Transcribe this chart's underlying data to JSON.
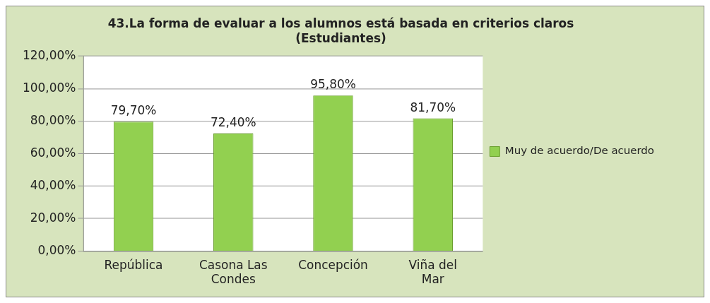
{
  "chart_data": {
    "type": "bar",
    "title": "43.La forma de evaluar a los alumnos está basada en criterios claros (Estudiantes)",
    "categories": [
      "República",
      "Casona Las Condes",
      "Concepción",
      "Viña del Mar"
    ],
    "series": [
      {
        "name": "Muy de acuerdo/De acuerdo",
        "color": "#92d050",
        "values": [
          79.7,
          72.4,
          95.8,
          81.7
        ],
        "value_labels": [
          "79,70%",
          "72,40%",
          "95,80%",
          "81,70%"
        ]
      }
    ],
    "ylim": [
      0,
      120
    ],
    "yticks": [
      {
        "value": 0,
        "label": "0,00%"
      },
      {
        "value": 20,
        "label": "20,00%"
      },
      {
        "value": 40,
        "label": "40,00%"
      },
      {
        "value": 60,
        "label": "60,00%"
      },
      {
        "value": 80,
        "label": "80,00%"
      },
      {
        "value": 100,
        "label": "100,00%"
      },
      {
        "value": 120,
        "label": "120,00%"
      }
    ],
    "grid": "y",
    "legend": "right"
  }
}
